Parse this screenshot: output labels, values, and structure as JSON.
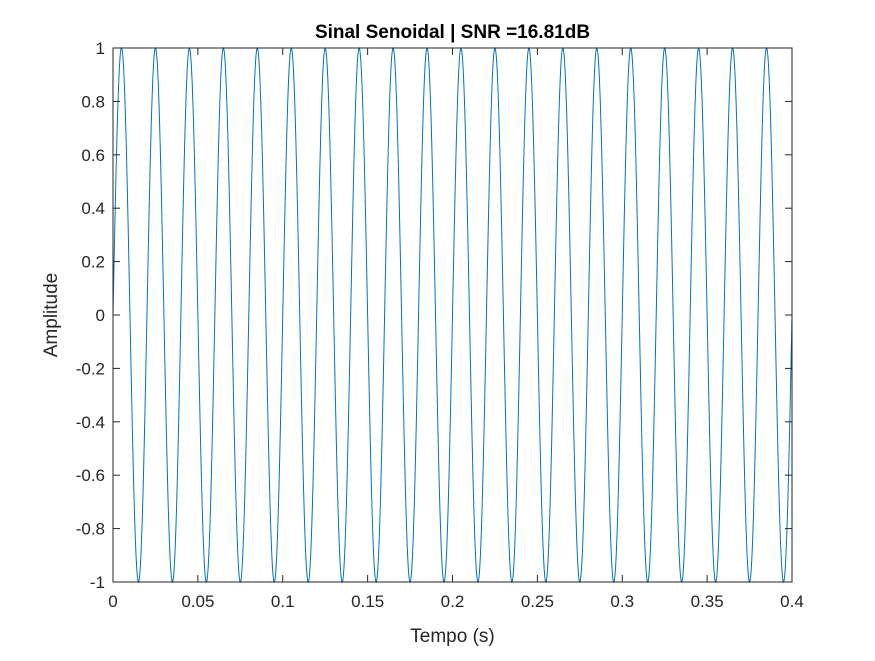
{
  "chart_data": {
    "type": "line",
    "title": "Sinal Senoidal | SNR =16.81dB",
    "xlabel": "Tempo (s)",
    "ylabel": "Amplitude",
    "xlim": [
      0,
      0.4
    ],
    "ylim": [
      -1,
      1
    ],
    "xticks": [
      0,
      0.05,
      0.1,
      0.15,
      0.2,
      0.25,
      0.3,
      0.35,
      0.4
    ],
    "xtick_labels": [
      "0",
      "0.05",
      "0.1",
      "0.15",
      "0.2",
      "0.25",
      "0.3",
      "0.35",
      "0.4"
    ],
    "yticks": [
      1,
      0.8,
      0.6,
      0.4,
      0.2,
      0,
      -0.2,
      -0.4,
      -0.6,
      -0.8,
      -1
    ],
    "ytick_labels": [
      "1",
      "0.8",
      "0.6",
      "0.4",
      "0.2",
      "0",
      "-0.2",
      "-0.4",
      "-0.6",
      "-0.8",
      "-1"
    ],
    "grid": false,
    "box": true,
    "series": [
      {
        "function": "sin",
        "amplitude": 1,
        "frequency_hz": 50,
        "phase_rad": 0,
        "x_start": 0,
        "x_end": 0.4,
        "color": "#0072BD"
      }
    ]
  }
}
